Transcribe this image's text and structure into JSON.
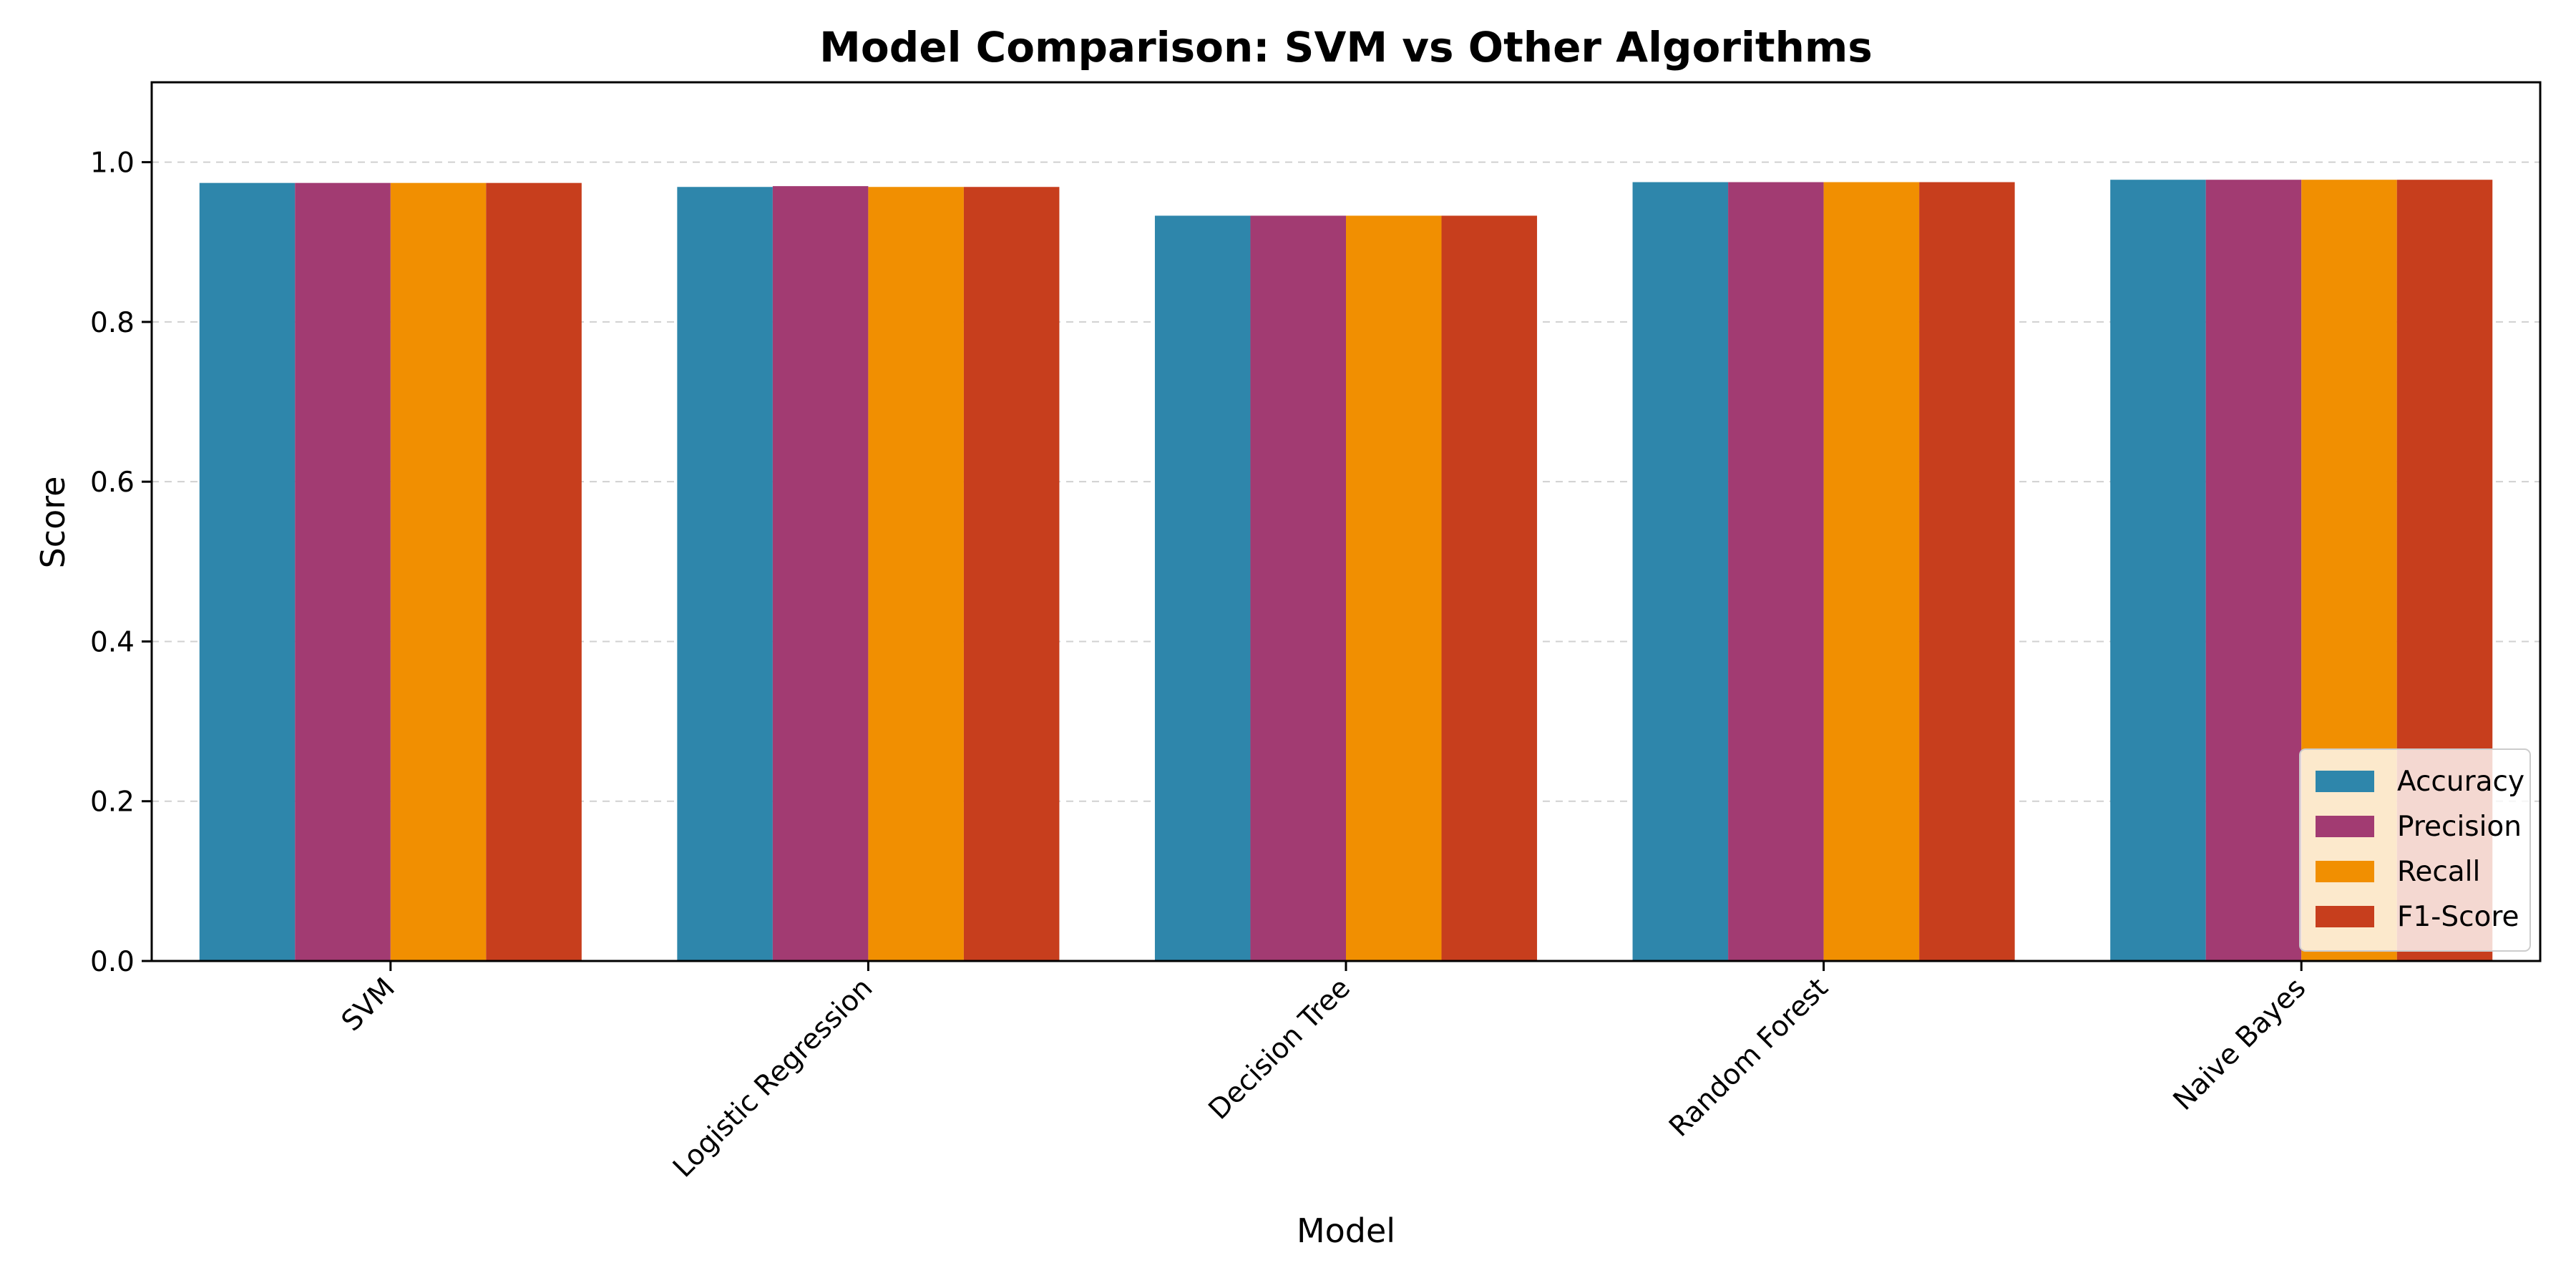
{
  "chart_data": {
    "type": "bar",
    "title": "Model Comparison: SVM vs Other Algorithms",
    "xlabel": "Model",
    "ylabel": "Score",
    "categories": [
      "SVM",
      "Logistic Regression",
      "Decision Tree",
      "Random Forest",
      "Naive Bayes"
    ],
    "series": [
      {
        "name": "Accuracy",
        "color": "#2E86AB",
        "values": [
          0.974,
          0.969,
          0.933,
          0.975,
          0.978
        ]
      },
      {
        "name": "Precision",
        "color": "#A23B72",
        "values": [
          0.974,
          0.97,
          0.933,
          0.975,
          0.978
        ]
      },
      {
        "name": "Recall",
        "color": "#F18F01",
        "values": [
          0.974,
          0.969,
          0.933,
          0.975,
          0.978
        ]
      },
      {
        "name": "F1-Score",
        "color": "#C73E1D",
        "values": [
          0.974,
          0.969,
          0.933,
          0.975,
          0.978
        ]
      }
    ],
    "ylim": [
      0,
      1.1
    ],
    "yticks": [
      "0.0",
      "0.2",
      "0.4",
      "0.6",
      "0.8",
      "1.0"
    ],
    "grid": true,
    "legend_position": "lower-right"
  }
}
